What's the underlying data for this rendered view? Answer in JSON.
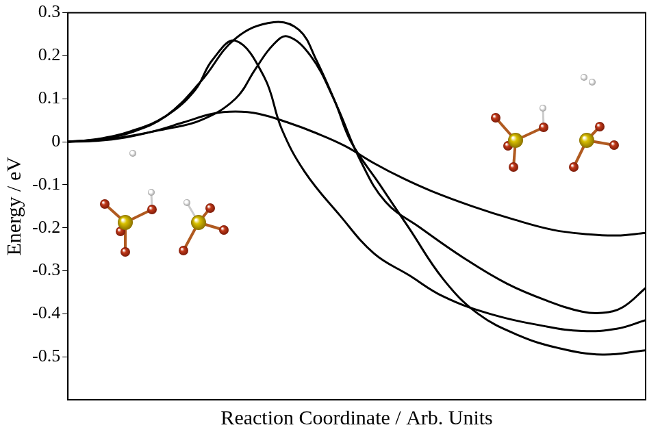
{
  "chart_data": {
    "type": "line",
    "x_label": "Reaction Coordinate / Arb. Units",
    "y_label": "Energy / eV",
    "xlim": [
      0,
      100
    ],
    "xticks": [],
    "ylim": [
      -0.6,
      0.3
    ],
    "yticks": [
      -0.5,
      -0.4,
      -0.3,
      -0.2,
      -0.1,
      0,
      0.1,
      0.2,
      0.3
    ],
    "grid": false,
    "tick_labels": "y",
    "series": [
      {
        "color": "#000000",
        "line_style": "solid",
        "x": [
          0,
          5,
          10,
          15,
          20,
          25,
          29,
          33,
          38,
          43,
          48,
          53,
          58,
          63,
          70,
          77,
          84,
          90,
          95,
          100
        ],
        "values": [
          0,
          0.002,
          0.01,
          0.025,
          0.045,
          0.065,
          0.07,
          0.065,
          0.045,
          0.02,
          -0.01,
          -0.05,
          -0.085,
          -0.115,
          -0.15,
          -0.18,
          -0.205,
          -0.215,
          -0.218,
          -0.212
        ]
      },
      {
        "color": "#000000",
        "line_style": "solid",
        "x": [
          0,
          5,
          11,
          17,
          22,
          25,
          29,
          34,
          37,
          41,
          47,
          53,
          59,
          65,
          73,
          83,
          89,
          95,
          100
        ],
        "values": [
          0,
          0.006,
          0.025,
          0.06,
          0.12,
          0.19,
          0.235,
          0.15,
          0.03,
          -0.07,
          -0.17,
          -0.26,
          -0.31,
          -0.36,
          -0.4,
          -0.43,
          -0.44,
          -0.435,
          -0.415
        ]
      },
      {
        "color": "#000000",
        "line_style": "solid",
        "x": [
          0,
          5,
          11,
          17,
          23,
          29,
          35.6,
          40,
          43,
          47,
          50.5,
          55,
          61,
          68.5,
          76,
          83,
          89,
          92.5,
          96,
          100
        ],
        "values": [
          0,
          0.005,
          0.022,
          0.06,
          0.14,
          0.24,
          0.278,
          0.26,
          0.19,
          0.07,
          -0.04,
          -0.14,
          -0.2,
          -0.27,
          -0.33,
          -0.37,
          -0.395,
          -0.398,
          -0.385,
          -0.34
        ]
      },
      {
        "color": "#000000",
        "line_style": "solid",
        "x": [
          0,
          8,
          17,
          23,
          29,
          32.5,
          35.5,
          38,
          42,
          46,
          49,
          54,
          59,
          65,
          71,
          78,
          85,
          92.5,
          100
        ],
        "values": [
          0,
          0.008,
          0.03,
          0.05,
          0.1,
          0.17,
          0.225,
          0.245,
          0.2,
          0.1,
          0,
          -0.1,
          -0.2,
          -0.32,
          -0.4,
          -0.45,
          -0.48,
          -0.495,
          -0.485
        ]
      }
    ]
  }
}
